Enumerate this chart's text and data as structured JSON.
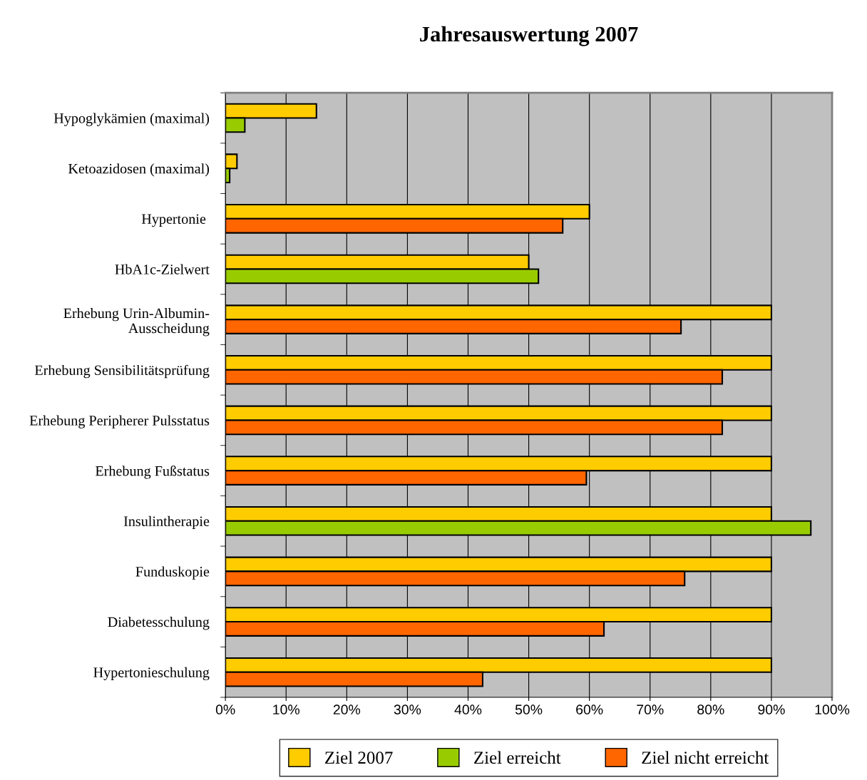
{
  "chart_data": {
    "type": "bar",
    "orientation": "horizontal",
    "title": "Jahresauswertung 2007",
    "categories": [
      "Hypoglykämien (maximal)",
      "Ketoazidosen (maximal)",
      "Hypertonie ",
      "HbA1c-Zielwert",
      "Erhebung Urin-Albumin-\nAusscheidung",
      "Erhebung Sensibilitätsprüfung",
      "Erhebung Peripherer Pulsstatus",
      "Erhebung Fußstatus",
      "Insulintherapie",
      "Funduskopie",
      "Diabetesschulung",
      "Hypertonieschulung"
    ],
    "series": [
      {
        "name": "Ziel 2007",
        "color": "#ffcc00",
        "values": [
          15,
          1.9,
          60,
          50,
          90,
          90,
          90,
          90,
          90,
          90,
          90,
          90
        ]
      },
      {
        "name": "Ziel erreicht",
        "color": "#99cc00",
        "values": [
          3.2,
          0.7,
          null,
          51.6,
          null,
          null,
          null,
          null,
          96.5,
          null,
          null,
          null
        ]
      },
      {
        "name": "Ziel nicht erreicht",
        "color": "#ff6600",
        "values": [
          null,
          null,
          55.6,
          null,
          75.1,
          81.9,
          81.9,
          59.5,
          null,
          75.7,
          62.4,
          42.4
        ]
      }
    ],
    "xlim": [
      0,
      100
    ],
    "xticks": [
      {
        "value": 0,
        "label": "0%"
      },
      {
        "value": 10,
        "label": "10%"
      },
      {
        "value": 20,
        "label": "20%"
      },
      {
        "value": 30,
        "label": "30%"
      },
      {
        "value": 40,
        "label": "40%"
      },
      {
        "value": 50,
        "label": "50%"
      },
      {
        "value": 60,
        "label": "60%"
      },
      {
        "value": 70,
        "label": "70%"
      },
      {
        "value": 80,
        "label": "80%"
      },
      {
        "value": 90,
        "label": "90%"
      },
      {
        "value": 100,
        "label": "100%"
      }
    ],
    "grid": "x",
    "legend": "bottom"
  }
}
